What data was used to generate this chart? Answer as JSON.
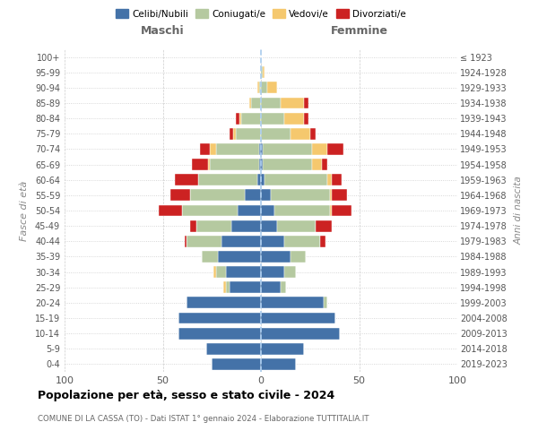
{
  "age_groups": [
    "0-4",
    "5-9",
    "10-14",
    "15-19",
    "20-24",
    "25-29",
    "30-34",
    "35-39",
    "40-44",
    "45-49",
    "50-54",
    "55-59",
    "60-64",
    "65-69",
    "70-74",
    "75-79",
    "80-84",
    "85-89",
    "90-94",
    "95-99",
    "100+"
  ],
  "birth_years": [
    "2019-2023",
    "2014-2018",
    "2009-2013",
    "2004-2008",
    "1999-2003",
    "1994-1998",
    "1989-1993",
    "1984-1988",
    "1979-1983",
    "1974-1978",
    "1969-1973",
    "1964-1968",
    "1959-1963",
    "1954-1958",
    "1949-1953",
    "1944-1948",
    "1939-1943",
    "1934-1938",
    "1929-1933",
    "1924-1928",
    "≤ 1923"
  ],
  "maschi": {
    "celibi": [
      25,
      28,
      42,
      42,
      38,
      16,
      18,
      22,
      20,
      15,
      12,
      8,
      2,
      1,
      1,
      0,
      0,
      0,
      0,
      0,
      0
    ],
    "coniugati": [
      0,
      0,
      0,
      0,
      0,
      2,
      5,
      8,
      18,
      18,
      28,
      28,
      30,
      25,
      22,
      13,
      10,
      5,
      1,
      0,
      0
    ],
    "vedovi": [
      0,
      0,
      0,
      0,
      0,
      1,
      1,
      0,
      0,
      0,
      0,
      0,
      0,
      1,
      3,
      1,
      1,
      1,
      1,
      0,
      0
    ],
    "divorziati": [
      0,
      0,
      0,
      0,
      0,
      0,
      0,
      0,
      1,
      3,
      12,
      10,
      12,
      8,
      5,
      2,
      2,
      0,
      0,
      0,
      0
    ]
  },
  "femmine": {
    "nubili": [
      18,
      22,
      40,
      38,
      32,
      10,
      12,
      15,
      12,
      8,
      7,
      5,
      2,
      1,
      1,
      0,
      0,
      0,
      0,
      0,
      0
    ],
    "coniugate": [
      0,
      0,
      0,
      0,
      2,
      3,
      6,
      8,
      18,
      20,
      28,
      30,
      32,
      25,
      25,
      15,
      12,
      10,
      3,
      1,
      0
    ],
    "vedove": [
      0,
      0,
      0,
      0,
      0,
      0,
      0,
      0,
      0,
      0,
      1,
      1,
      2,
      5,
      8,
      10,
      10,
      12,
      5,
      1,
      0
    ],
    "divorziate": [
      0,
      0,
      0,
      0,
      0,
      0,
      0,
      0,
      3,
      8,
      10,
      8,
      5,
      3,
      8,
      3,
      2,
      2,
      0,
      0,
      0
    ]
  },
  "colors": {
    "celibi": "#4472a8",
    "coniugati": "#b5c9a0",
    "vedovi": "#f5c86e",
    "divorziati": "#cc2222"
  },
  "title": "Popolazione per età, sesso e stato civile - 2024",
  "subtitle": "COMUNE DI LA CASSA (TO) - Dati ISTAT 1° gennaio 2024 - Elaborazione TUTTITALIA.IT",
  "xlabel_maschi": "Maschi",
  "xlabel_femmine": "Femmine",
  "ylabel": "Fasce di età",
  "ylabel_right": "Anni di nascita",
  "xlim": 100,
  "legend_labels": [
    "Celibi/Nubili",
    "Coniugati/e",
    "Vedovi/e",
    "Divorziati/e"
  ]
}
